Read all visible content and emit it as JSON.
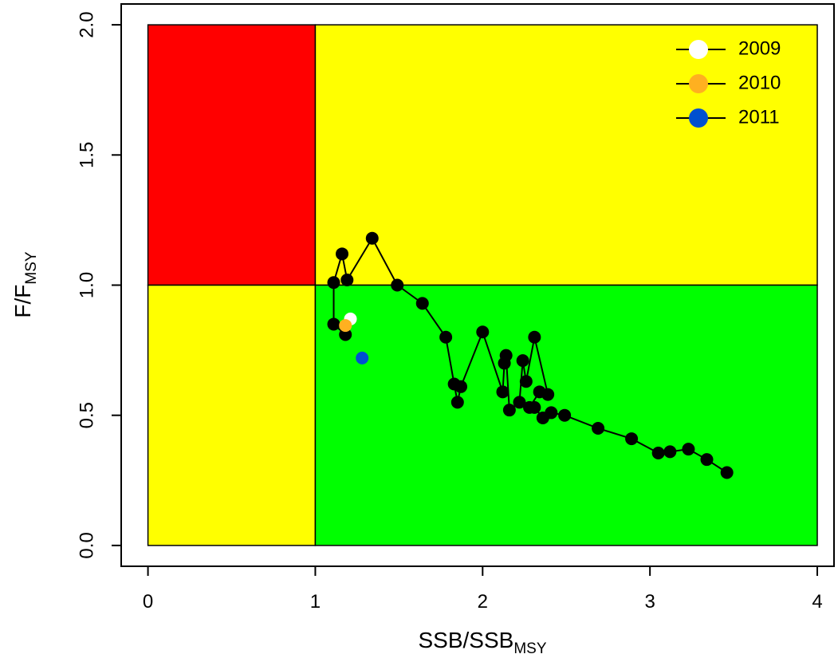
{
  "chart_data": {
    "type": "kobe",
    "xlabel": {
      "text": "SSB/SSB",
      "sub": "MSY"
    },
    "ylabel": {
      "text": "F/F",
      "sub": "MSY"
    },
    "xlim": [
      -0.16,
      4.1
    ],
    "ylim": [
      -0.08,
      2.08
    ],
    "xticks": [
      0,
      1,
      2,
      3,
      4
    ],
    "yticks": [
      {
        "value": 0,
        "label": "0.0"
      },
      0.5,
      {
        "value": 1,
        "label": "1.0"
      },
      1.5,
      {
        "value": 2,
        "label": "2.0"
      }
    ],
    "zones": [
      {
        "xlim": [
          0,
          1
        ],
        "ylim": [
          1,
          2
        ],
        "color": "#ff0000"
      },
      {
        "xlim": [
          1,
          4
        ],
        "ylim": [
          1,
          2
        ],
        "color": "#ffff00"
      },
      {
        "xlim": [
          0,
          1
        ],
        "ylim": [
          0,
          1
        ],
        "color": "#ffff00"
      },
      {
        "xlim": [
          1,
          4
        ],
        "ylim": [
          0,
          1
        ],
        "color": "#00ff00"
      }
    ],
    "trajectory": {
      "color": "#000000",
      "x": [
        3.46,
        3.34,
        3.23,
        3.12,
        3.05,
        2.89,
        2.69,
        2.49,
        2.41,
        2.36,
        2.31,
        2.28,
        2.34,
        2.39,
        2.31,
        2.26,
        2.24,
        2.22,
        2.16,
        2.14,
        2.13,
        2.12,
        2.0,
        1.87,
        1.85,
        1.83,
        1.78,
        1.64,
        1.49,
        1.34,
        1.19,
        1.16,
        1.11,
        1.11,
        1.18
      ],
      "values": [
        0.28,
        0.33,
        0.37,
        0.36,
        0.355,
        0.41,
        0.45,
        0.5,
        0.51,
        0.49,
        0.53,
        0.53,
        0.59,
        0.58,
        0.8,
        0.63,
        0.71,
        0.55,
        0.52,
        0.73,
        0.7,
        0.59,
        0.82,
        0.61,
        0.55,
        0.62,
        0.8,
        0.93,
        1.0,
        1.18,
        1.02,
        1.12,
        1.01,
        0.85,
        0.81
      ]
    },
    "series": [
      {
        "name": "2009",
        "color": "#ffffff",
        "x": [
          1.21
        ],
        "values": [
          0.87
        ]
      },
      {
        "name": "2010",
        "color": "#ffb020",
        "x": [
          1.18
        ],
        "values": [
          0.845
        ]
      },
      {
        "name": "2011",
        "color": "#0050d0",
        "x": [
          1.28
        ],
        "values": [
          0.72
        ]
      }
    ],
    "legend": "upper right"
  }
}
